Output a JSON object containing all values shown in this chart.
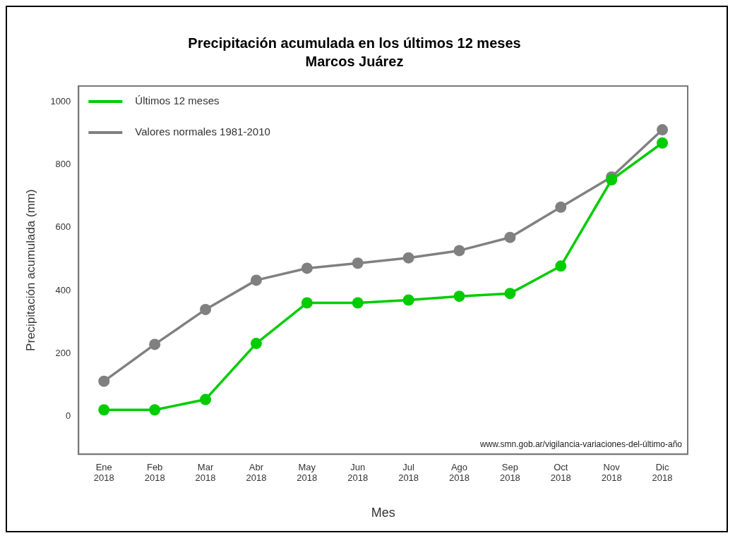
{
  "chart_data": {
    "type": "line",
    "title": "Precipitación acumulada en los últimos 12 meses",
    "subtitle": "Marcos Juárez",
    "xlabel": "Mes",
    "ylabel": "Precipitación acumulada (mm)",
    "categories": [
      "Ene 2018",
      "Feb 2018",
      "Mar 2018",
      "Abr 2018",
      "May 2018",
      "Jun 2018",
      "Jul 2018",
      "Ago 2018",
      "Sep 2018",
      "Oct 2018",
      "Nov 2018",
      "Dic 2018"
    ],
    "series": [
      {
        "name": "Últimos 12 meses",
        "color": "#00cc00",
        "values": [
          21,
          21,
          54,
          232,
          361,
          361,
          370,
          382,
          391,
          478,
          752,
          869
        ]
      },
      {
        "name": "Valores normales 1981-2010",
        "color": "#808080",
        "values": [
          112,
          229,
          340,
          433,
          471,
          487,
          504,
          527,
          569,
          665,
          761,
          911
        ]
      }
    ],
    "ylim": [
      -120,
      1050
    ],
    "yticks": [
      0,
      200,
      400,
      600,
      800,
      1000
    ],
    "grid": false,
    "legend": "top left",
    "marker": "circle",
    "line_style": "solid",
    "annotations": [
      "www.smn.gob.ar/vigilancia-variaciones-del-último-año"
    ]
  }
}
